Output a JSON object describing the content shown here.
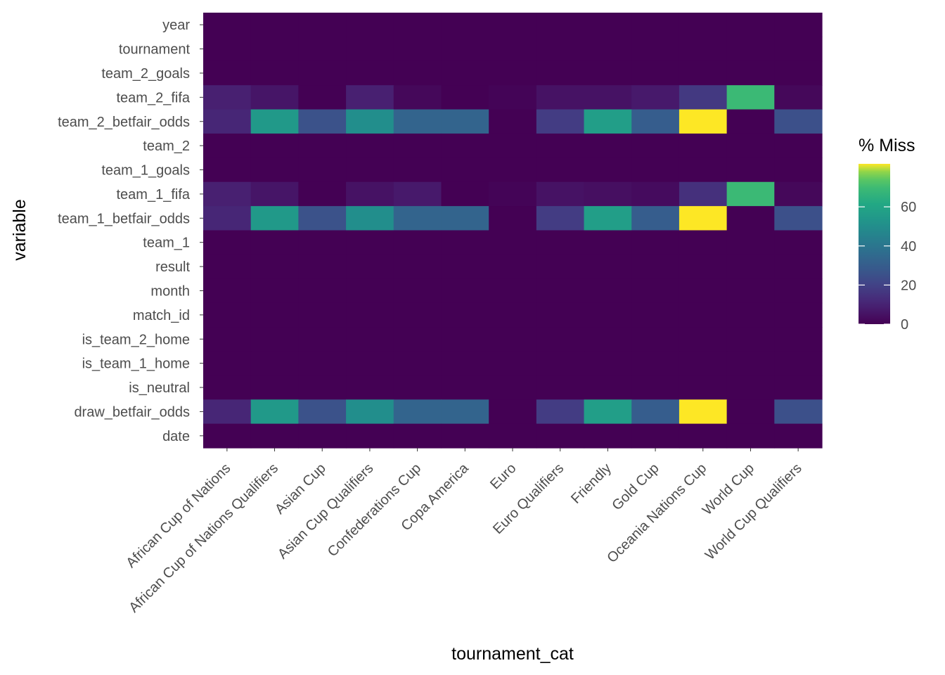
{
  "chart_data": {
    "type": "heatmap",
    "xlabel": "tournament_cat",
    "ylabel": "variable",
    "x": [
      "African Cup of Nations",
      "African Cup of Nations Qualifiers",
      "Asian Cup",
      "Asian Cup Qualifiers",
      "Confederations Cup",
      "Copa America",
      "Euro",
      "Euro Qualifiers",
      "Friendly",
      "Gold Cup",
      "Oceania Nations Cup",
      "World Cup",
      "World Cup Qualifiers"
    ],
    "y": [
      "year",
      "tournament",
      "team_2_goals",
      "team_2_fifa",
      "team_2_betfair_odds",
      "team_2",
      "team_1_goals",
      "team_1_fifa",
      "team_1_betfair_odds",
      "team_1",
      "result",
      "month",
      "match_id",
      "is_team_2_home",
      "is_team_1_home",
      "is_neutral",
      "draw_betfair_odds",
      "date"
    ],
    "values": [
      [
        0,
        0,
        0,
        0,
        0,
        0,
        0,
        0,
        0,
        0,
        0,
        0,
        0
      ],
      [
        0,
        0,
        0,
        0,
        0,
        0,
        0,
        0,
        0,
        0,
        0,
        0,
        0
      ],
      [
        0,
        0,
        0,
        0,
        0,
        0,
        0,
        0,
        0,
        0,
        0,
        0,
        0
      ],
      [
        9,
        6,
        0,
        9,
        2,
        0,
        1,
        5,
        5,
        7,
        17,
        69,
        2
      ],
      [
        11,
        55,
        26,
        50,
        33,
        33,
        0,
        18,
        57,
        30,
        82,
        0,
        25
      ],
      [
        0,
        0,
        0,
        0,
        0,
        0,
        0,
        0,
        0,
        0,
        0,
        0,
        0
      ],
      [
        0,
        0,
        0,
        0,
        0,
        0,
        0,
        0,
        0,
        0,
        0,
        0,
        0
      ],
      [
        9,
        6,
        0,
        5,
        7,
        0,
        1,
        5,
        4,
        3,
        14,
        69,
        2
      ],
      [
        11,
        55,
        26,
        50,
        33,
        33,
        0,
        18,
        57,
        30,
        82,
        0,
        25
      ],
      [
        0,
        0,
        0,
        0,
        0,
        0,
        0,
        0,
        0,
        0,
        0,
        0,
        0
      ],
      [
        0,
        0,
        0,
        0,
        0,
        0,
        0,
        0,
        0,
        0,
        0,
        0,
        0
      ],
      [
        0,
        0,
        0,
        0,
        0,
        0,
        0,
        0,
        0,
        0,
        0,
        0,
        0
      ],
      [
        0,
        0,
        0,
        0,
        0,
        0,
        0,
        0,
        0,
        0,
        0,
        0,
        0
      ],
      [
        0,
        0,
        0,
        0,
        0,
        0,
        0,
        0,
        0,
        0,
        0,
        0,
        0
      ],
      [
        0,
        0,
        0,
        0,
        0,
        0,
        0,
        0,
        0,
        0,
        0,
        0,
        0
      ],
      [
        0,
        0,
        0,
        0,
        0,
        0,
        0,
        0,
        0,
        0,
        0,
        0,
        0
      ],
      [
        11,
        55,
        26,
        50,
        33,
        33,
        0,
        18,
        57,
        30,
        82,
        0,
        25
      ],
      [
        0,
        0,
        0,
        0,
        0,
        0,
        0,
        0,
        0,
        0,
        0,
        0,
        0
      ]
    ],
    "color_scale": "viridis",
    "color_range": [
      0,
      82
    ],
    "legend": {
      "title": "% Miss",
      "ticks": [
        0,
        20,
        40,
        60
      ],
      "placement": "right"
    },
    "grid": true
  }
}
